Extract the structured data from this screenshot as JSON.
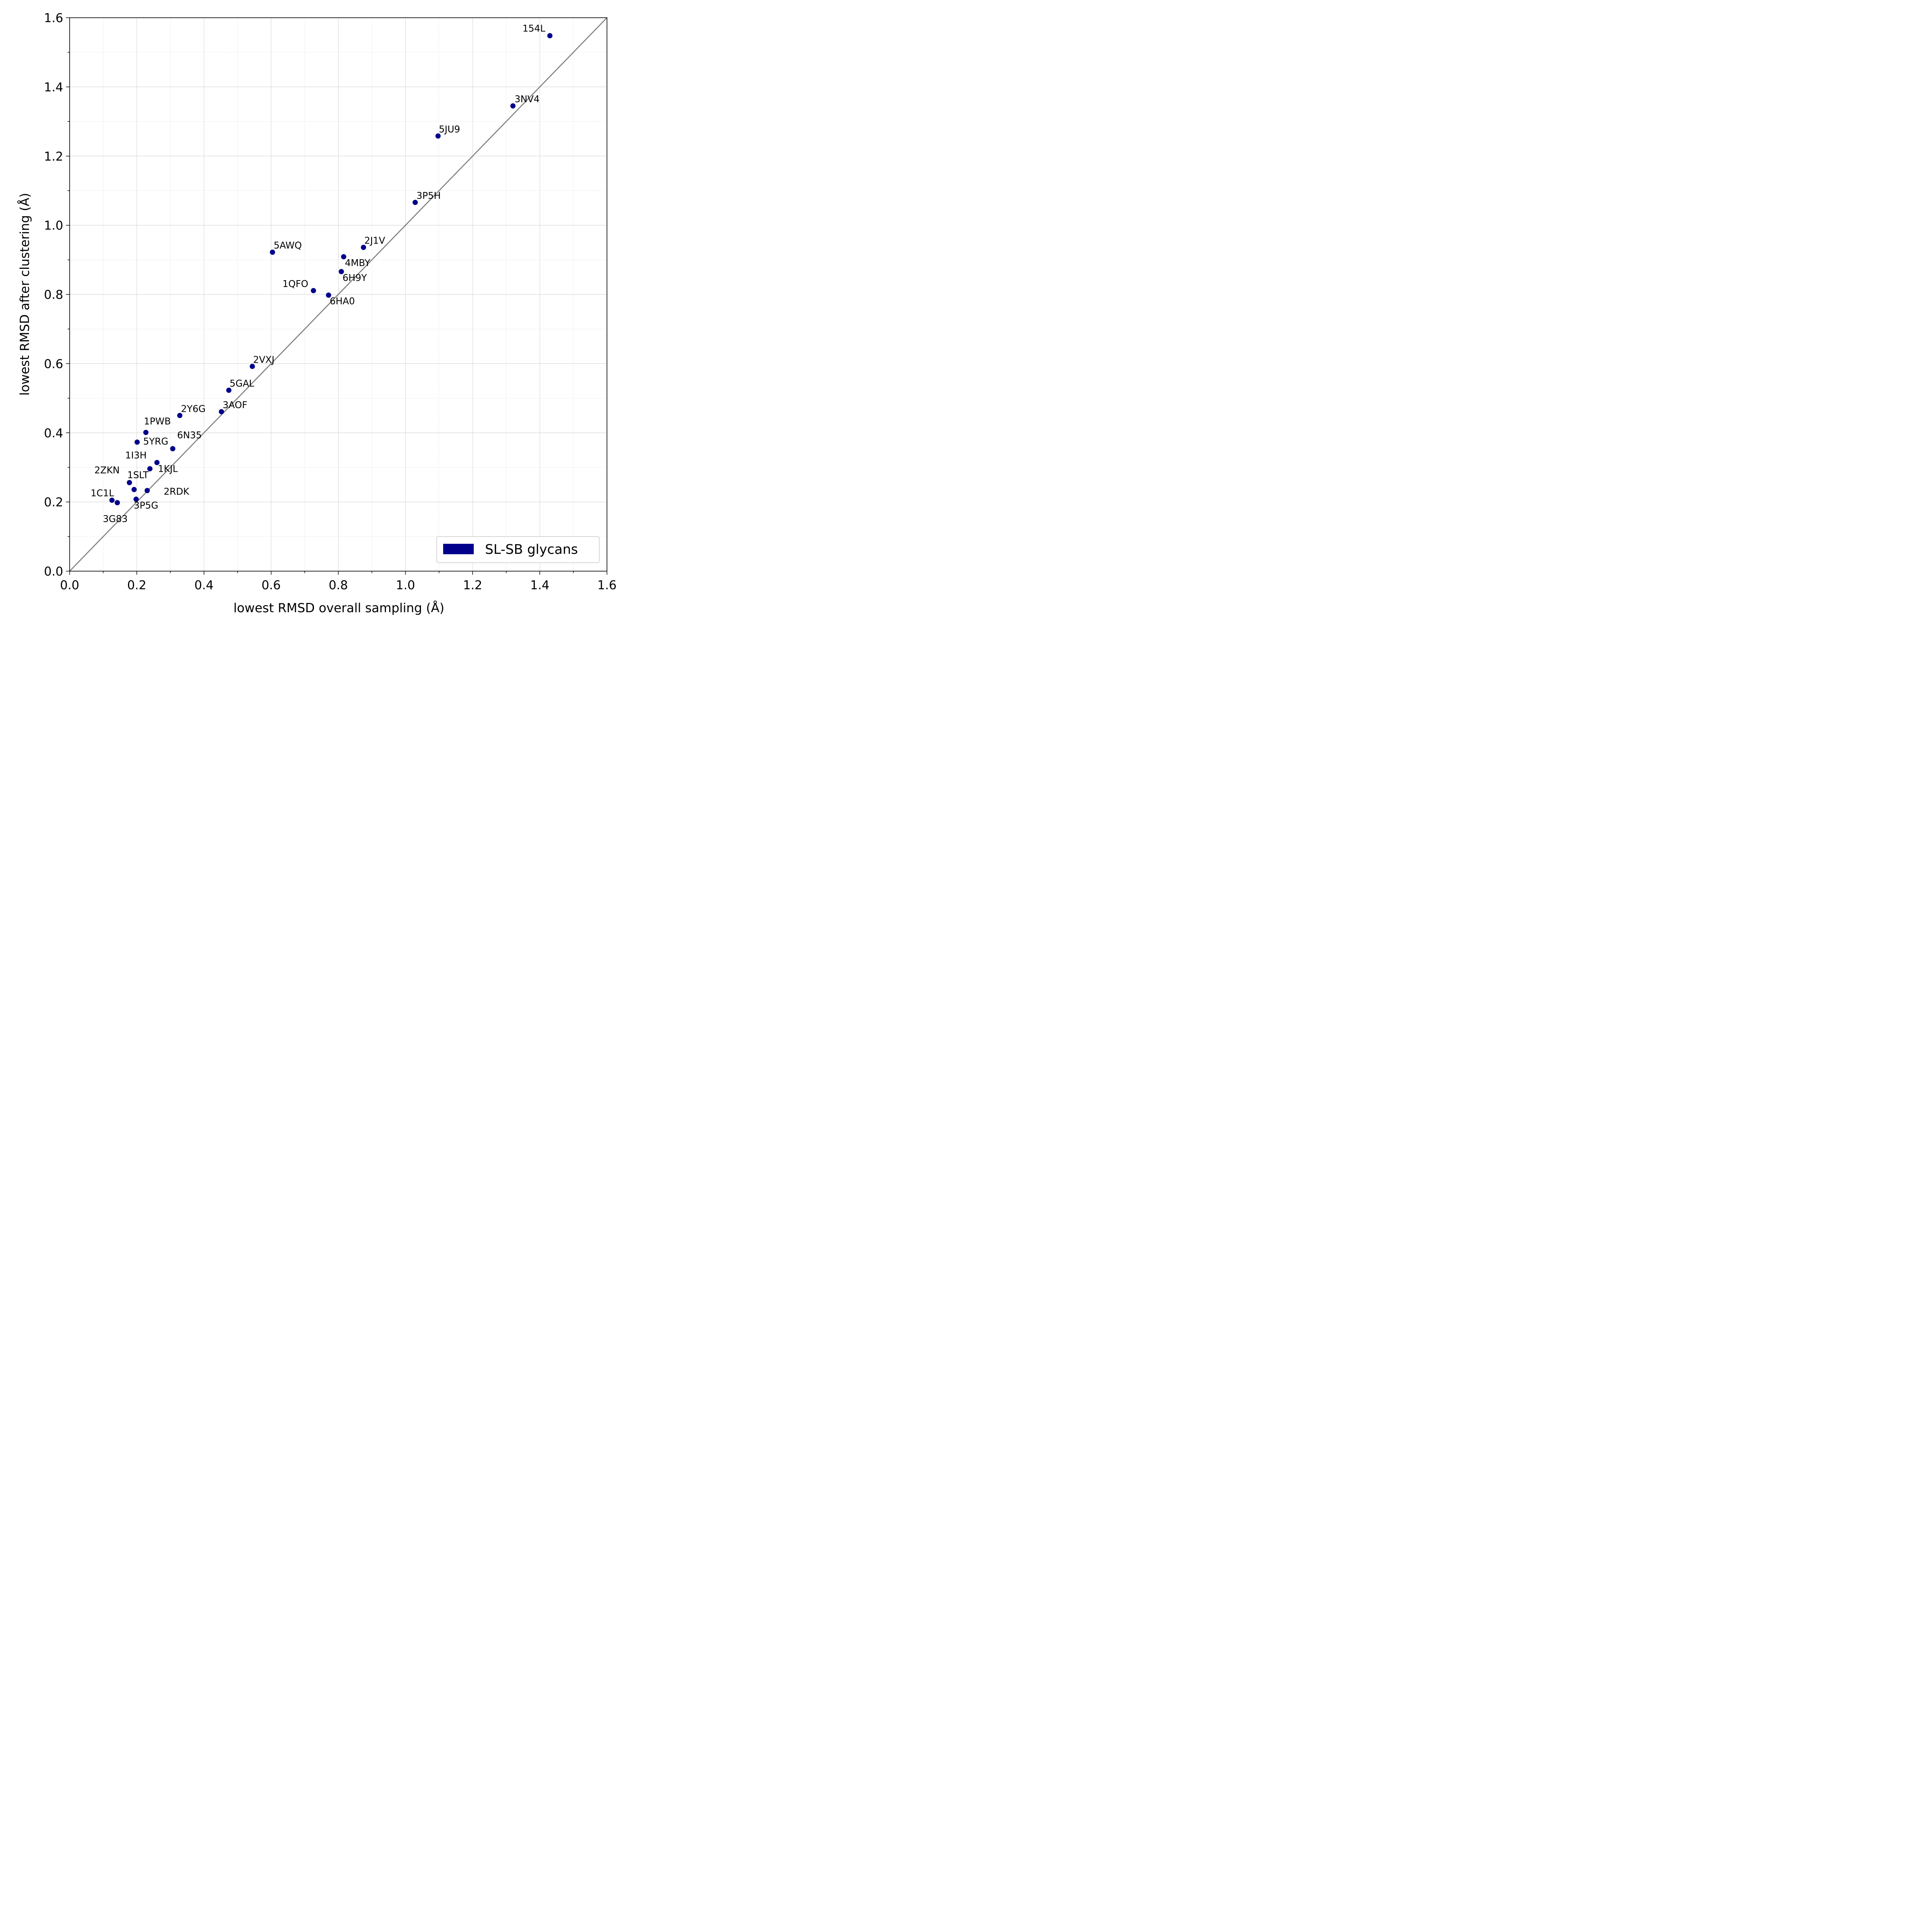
{
  "chart_data": {
    "type": "scatter",
    "xlabel": "lowest RMSD overall sampling (Å)",
    "ylabel": "lowest RMSD after clustering (Å)",
    "xlim": [
      0.0,
      1.6
    ],
    "ylim": [
      0.0,
      1.6
    ],
    "major_ticks": [
      "0.0",
      "0.2",
      "0.4",
      "0.6",
      "0.8",
      "1.0",
      "1.2",
      "1.4",
      "1.6"
    ],
    "grid": true,
    "reference_line": "y = x",
    "legend": {
      "position": "bottom-right",
      "label": "SL-SB glycans"
    },
    "colors": {
      "points": "#00008b",
      "reference_line": "#808080"
    },
    "series": [
      {
        "name": "SL-SB glycans",
        "points": [
          {
            "label": "154L",
            "x": 1.43,
            "y": 1.548
          },
          {
            "label": "3NV4",
            "x": 1.32,
            "y": 1.345
          },
          {
            "label": "5JU9",
            "x": 1.097,
            "y": 1.258
          },
          {
            "label": "3P5H",
            "x": 1.029,
            "y": 1.066
          },
          {
            "label": "2J1V",
            "x": 0.875,
            "y": 0.936
          },
          {
            "label": "4MBY",
            "x": 0.816,
            "y": 0.909
          },
          {
            "label": "6H9Y",
            "x": 0.809,
            "y": 0.866
          },
          {
            "label": "5AWQ",
            "x": 0.604,
            "y": 0.922
          },
          {
            "label": "1QFO",
            "x": 0.726,
            "y": 0.811
          },
          {
            "label": "6HA0",
            "x": 0.771,
            "y": 0.798
          },
          {
            "label": "2VXJ",
            "x": 0.544,
            "y": 0.592
          },
          {
            "label": "5GAL",
            "x": 0.474,
            "y": 0.523
          },
          {
            "label": "3AOF",
            "x": 0.452,
            "y": 0.461
          },
          {
            "label": "2Y6G",
            "x": 0.328,
            "y": 0.45
          },
          {
            "label": "1PWB",
            "x": 0.227,
            "y": 0.401
          },
          {
            "label": "5YRG",
            "x": 0.201,
            "y": 0.373
          },
          {
            "label": "6N35",
            "x": 0.307,
            "y": 0.354
          },
          {
            "label": "1I3H",
            "x": 0.26,
            "y": 0.314
          },
          {
            "label": "1KJL",
            "x": 0.239,
            "y": 0.296
          },
          {
            "label": "2ZKN",
            "x": 0.178,
            "y": 0.256
          },
          {
            "label": "1SLT",
            "x": 0.192,
            "y": 0.236
          },
          {
            "label": "2RDK",
            "x": 0.231,
            "y": 0.233
          },
          {
            "label": "1C1L",
            "x": 0.126,
            "y": 0.205
          },
          {
            "label": "3G83",
            "x": 0.142,
            "y": 0.198
          },
          {
            "label": "3P5G",
            "x": 0.198,
            "y": 0.208
          }
        ]
      }
    ]
  }
}
